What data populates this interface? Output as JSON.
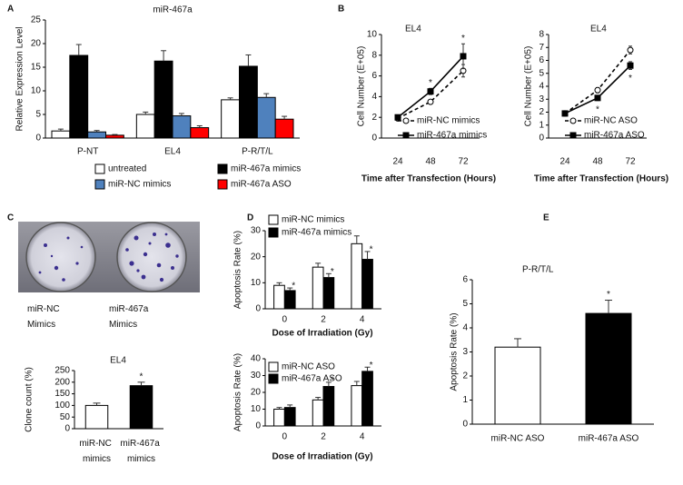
{
  "photo": {
    "labels": [
      "miR-NC Mimics",
      "miR-467a Mimics"
    ]
  },
  "chart_data": [
    {
      "panel": "A",
      "type": "bar",
      "title": "miR-467a",
      "ylabel": "Relative Expression Level",
      "categories": [
        "P-NT",
        "EL4",
        "P-R/T/L"
      ],
      "ylim": [
        0,
        25
      ],
      "yticks": [
        0,
        5,
        10,
        15,
        20,
        25
      ],
      "legend": "bottom",
      "series": [
        {
          "name": "untreated",
          "color": "#ffffff",
          "values": [
            1.5,
            5,
            8.1
          ],
          "errors": [
            0.4,
            0.5,
            0.4
          ]
        },
        {
          "name": "miR-467a mimics",
          "color": "#000000",
          "values": [
            17.5,
            16.3,
            15.2
          ],
          "errors": [
            2.3,
            2.2,
            2.4
          ]
        },
        {
          "name": "miR-NC mimics",
          "color": "#4f81bd",
          "values": [
            1.3,
            4.7,
            8.6
          ],
          "errors": [
            0.3,
            0.5,
            0.8
          ]
        },
        {
          "name": "miR-467a ASO",
          "color": "#ff0000",
          "values": [
            0.6,
            2.2,
            4
          ],
          "errors": [
            0.15,
            0.4,
            0.6
          ]
        }
      ]
    },
    {
      "panel": "B",
      "type": "line",
      "title": "EL4",
      "ylabel": "Cell Number (E+05)",
      "xlabel": "Time after Transfection (Hours)",
      "categories": [
        "24",
        "48",
        "72"
      ],
      "ylim": [
        0,
        10
      ],
      "yticks": [
        0,
        2,
        4,
        6,
        8,
        10
      ],
      "legend": "bottom right",
      "series": [
        {
          "name": "miR-NC mimics",
          "color": "#000000",
          "line_style": "dashed",
          "marker": "circle",
          "marker_fill": "#ffffff",
          "values": [
            1.9,
            3.5,
            6.5
          ],
          "errors": [
            0.1,
            0.2,
            0.6
          ]
        },
        {
          "name": "miR-467a mimics",
          "color": "#000000",
          "line_style": "solid",
          "marker": "square",
          "marker_fill": "#000000",
          "values": [
            2,
            4.5,
            7.9
          ],
          "errors": [
            0.1,
            0.3,
            1.2
          ],
          "significance": [
            null,
            "*",
            "*"
          ]
        }
      ]
    },
    {
      "type": "line",
      "title": "EL4",
      "ylabel": "Cell Number (E+05)",
      "xlabel": "Time after Transfection (Hours)",
      "categories": [
        "24",
        "48",
        "72"
      ],
      "ylim": [
        0,
        8
      ],
      "yticks": [
        0,
        1,
        2,
        3,
        4,
        5,
        6,
        7,
        8
      ],
      "legend": "bottom right",
      "series": [
        {
          "name": "miR-NC ASO",
          "color": "#000000",
          "line_style": "dashed",
          "marker": "circle",
          "marker_fill": "#ffffff",
          "values": [
            1.9,
            3.7,
            6.8
          ],
          "errors": [
            0.1,
            0.2,
            0.3
          ]
        },
        {
          "name": "miR-467a ASO",
          "color": "#000000",
          "line_style": "solid",
          "marker": "square",
          "marker_fill": "#000000",
          "values": [
            1.9,
            3.1,
            5.6
          ],
          "errors": [
            0.2,
            0.2,
            0.3
          ],
          "significance": [
            null,
            "*",
            "*"
          ]
        }
      ]
    },
    {
      "panel": "C",
      "type": "bar",
      "title": "EL4",
      "ylabel": "Clone count (%)",
      "categories": [
        "miR-NC mimics",
        "miR-467a mimics"
      ],
      "ylim": [
        0,
        250
      ],
      "yticks": [
        0,
        50,
        100,
        150,
        200,
        250
      ],
      "values": [
        100,
        185
      ],
      "colors": [
        "#ffffff",
        "#000000"
      ],
      "errors": [
        10,
        15
      ],
      "significance": [
        null,
        "*"
      ]
    },
    {
      "panel": "D",
      "type": "bar",
      "ylabel": "Apoptosis Rate (%)",
      "xlabel": "Dose of Irradiation (Gy)",
      "categories": [
        "0",
        "2",
        "4"
      ],
      "ylim": [
        0,
        30
      ],
      "yticks": [
        0,
        10,
        20,
        30
      ],
      "legend": "top left",
      "series": [
        {
          "name": "miR-NC mimics",
          "color": "#ffffff",
          "values": [
            9,
            16,
            25
          ],
          "errors": [
            1,
            1.5,
            3
          ]
        },
        {
          "name": "miR-467a mimics",
          "color": "#000000",
          "values": [
            7,
            12,
            19
          ],
          "errors": [
            1,
            1.5,
            3
          ],
          "significance": [
            "*",
            "*",
            "*"
          ]
        }
      ]
    },
    {
      "type": "bar",
      "ylabel": "Apoptosis Rate (%)",
      "xlabel": "Dose of Irradiation (Gy)",
      "categories": [
        "0",
        "2",
        "4"
      ],
      "ylim": [
        0,
        40
      ],
      "yticks": [
        0,
        10,
        20,
        30,
        40
      ],
      "legend": "top left",
      "series": [
        {
          "name": "miR-NC ASO",
          "color": "#ffffff",
          "values": [
            10,
            15.5,
            24
          ],
          "errors": [
            1,
            1.5,
            2.5
          ]
        },
        {
          "name": "miR-467a ASO",
          "color": "#000000",
          "values": [
            11,
            23.5,
            32.5
          ],
          "errors": [
            1.5,
            2.5,
            2.5
          ],
          "significance": [
            null,
            "*",
            "*"
          ]
        }
      ]
    },
    {
      "panel": "E",
      "type": "bar",
      "title": "P-R/T/L",
      "ylabel": "Apoptosis Rate (%)",
      "categories": [
        "miR-NC ASO",
        "miR-467a ASO"
      ],
      "ylim": [
        0,
        6
      ],
      "yticks": [
        0,
        1,
        2,
        3,
        4,
        5,
        6
      ],
      "values": [
        3.2,
        4.6
      ],
      "colors": [
        "#ffffff",
        "#000000"
      ],
      "errors": [
        0.35,
        0.55
      ],
      "significance": [
        null,
        "*"
      ]
    }
  ]
}
